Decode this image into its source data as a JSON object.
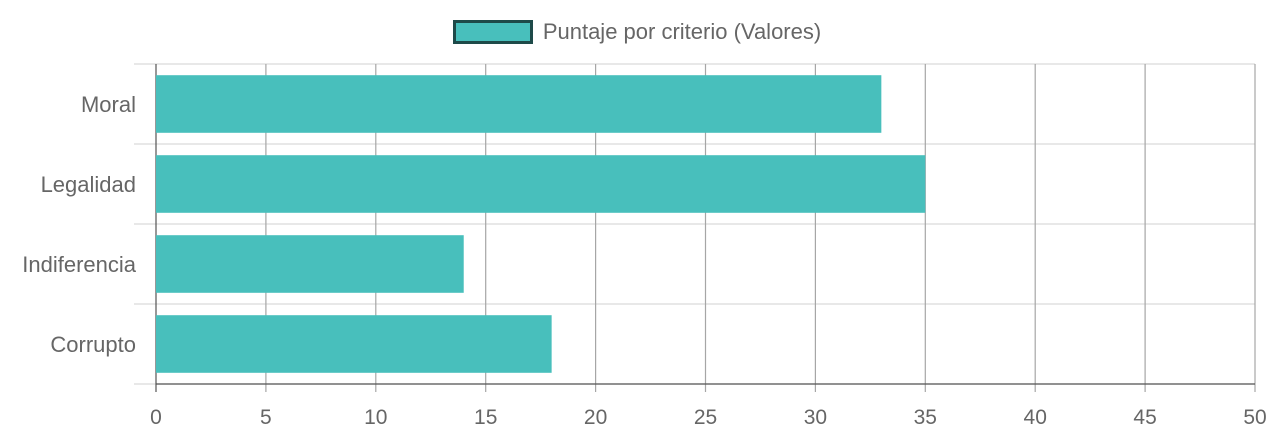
{
  "chart_data": {
    "type": "bar",
    "orientation": "horizontal",
    "categories": [
      "Moral",
      "Legalidad",
      "Indiferencia",
      "Corrupto"
    ],
    "series": [
      {
        "name": "Puntaje por criterio (Valores)",
        "values": [
          33,
          35,
          14,
          18
        ]
      }
    ],
    "title": "",
    "xlabel": "",
    "ylabel": "",
    "xlim": [
      0,
      50
    ],
    "x_ticks": [
      0,
      5,
      10,
      15,
      20,
      25,
      30,
      35,
      40,
      45,
      50
    ],
    "grid": true,
    "legend_position": "top-center"
  },
  "colors": {
    "bar_fill": "#48bfbc",
    "legend_border": "#1e4a49",
    "grid": "#d9d9d9",
    "grid_major": "#a6a6a6",
    "text": "#666666"
  }
}
